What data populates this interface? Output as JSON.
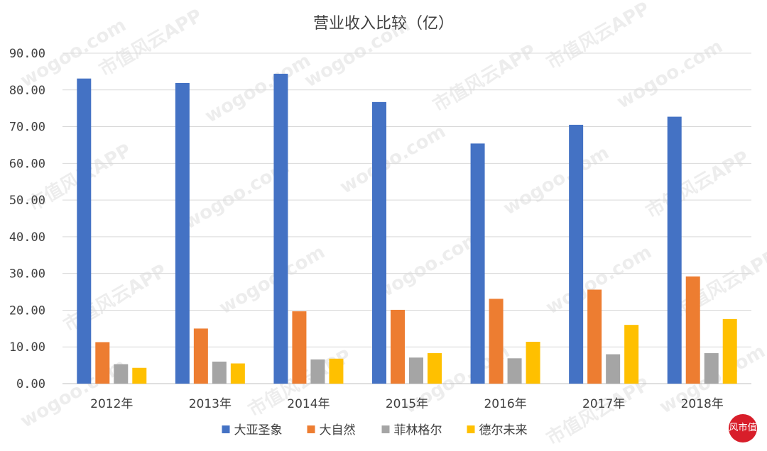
{
  "chart_data": {
    "type": "bar",
    "title": "营业收入比较（亿）",
    "categories": [
      "2012年",
      "2013年",
      "2014年",
      "2015年",
      "2016年",
      "2017年",
      "2018年"
    ],
    "series": [
      {
        "name": "大亚圣象",
        "color": "#4472C4",
        "values": [
          83.1,
          81.9,
          84.4,
          76.7,
          65.4,
          70.5,
          72.7
        ]
      },
      {
        "name": "大自然",
        "color": "#ED7D31",
        "values": [
          11.3,
          15.0,
          19.7,
          20.1,
          23.1,
          25.6,
          29.2
        ]
      },
      {
        "name": "菲林格尔",
        "color": "#A5A5A5",
        "values": [
          5.3,
          6.0,
          6.6,
          7.1,
          6.9,
          8.0,
          8.3
        ]
      },
      {
        "name": "德尔未来",
        "color": "#FFC000",
        "values": [
          4.3,
          5.5,
          6.8,
          8.3,
          11.4,
          16.0,
          17.6
        ]
      }
    ],
    "yticks": [
      "0.00",
      "10.00",
      "20.00",
      "30.00",
      "40.00",
      "50.00",
      "60.00",
      "70.00",
      "80.00",
      "90.00"
    ],
    "ylim": [
      0,
      90
    ],
    "grid": true,
    "legend": "bottom"
  },
  "watermark": {
    "text_cn": "市值风云APP",
    "text_url": "wogoo.com",
    "logo_text": "风市值"
  }
}
